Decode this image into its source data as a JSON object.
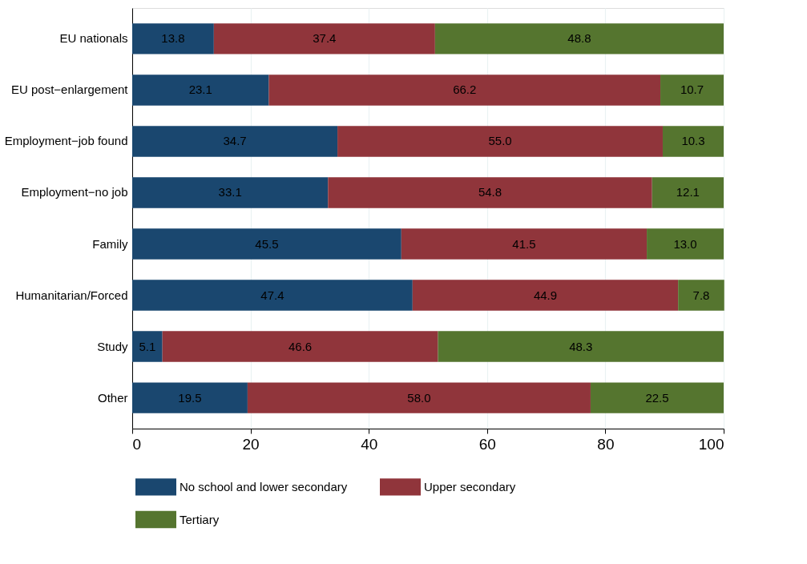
{
  "chart_data": {
    "type": "bar",
    "orientation": "horizontal",
    "stacked": true,
    "grid": "x",
    "legend": "bottom",
    "categories": [
      "EU nationals",
      "EU post−enlargement",
      "Employment−job found",
      "Employment−no job",
      "Family",
      "Humanitarian/Forced",
      "Study",
      "Other"
    ],
    "series": [
      {
        "name": "No school and lower secondary",
        "color": "#1a476f",
        "values": [
          13.8,
          23.1,
          34.7,
          33.1,
          45.5,
          47.4,
          5.1,
          19.5
        ],
        "value_labels": [
          "13.8",
          "23.1",
          "34.7",
          "33.1",
          "45.5",
          "47.4",
          "5.1",
          "19.5"
        ]
      },
      {
        "name": "Upper secondary",
        "color": "#90353b",
        "values": [
          37.4,
          66.2,
          55.0,
          54.8,
          41.5,
          44.9,
          46.6,
          58.0
        ],
        "value_labels": [
          "37.4",
          "66.2",
          "55.0",
          "54.8",
          "41.5",
          "44.9",
          "46.6",
          "58.0"
        ]
      },
      {
        "name": "Tertiary",
        "color": "#55752f",
        "values": [
          48.8,
          10.7,
          10.3,
          12.1,
          13.0,
          7.8,
          48.3,
          22.5
        ],
        "value_labels": [
          "48.8",
          "10.7",
          "10.3",
          "12.1",
          "13.0",
          "7.8",
          "48.3",
          "22.5"
        ]
      }
    ],
    "xlim": [
      0,
      100
    ],
    "xticks": [
      0,
      20,
      40,
      60,
      80,
      100
    ]
  }
}
